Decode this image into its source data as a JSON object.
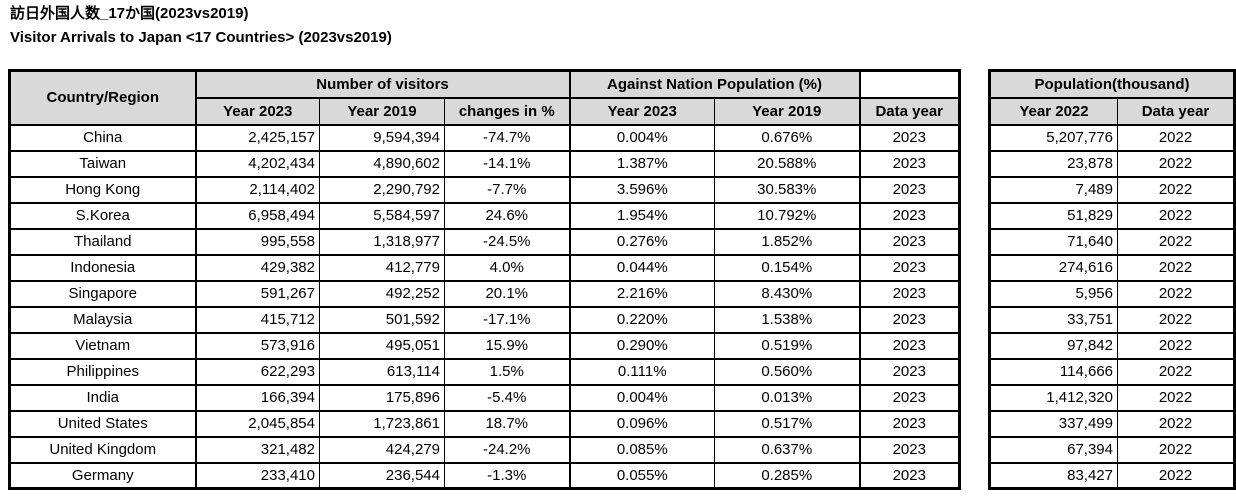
{
  "titles": {
    "japanese": "訪日外国人数_17か国(2023vs2019)",
    "english": "Visitor Arrivals to Japan <17 Countries> (2023vs2019)"
  },
  "colors": {
    "header_fill": "#d9d9d9",
    "border": "#000000",
    "background": "#ffffff",
    "text": "#000000"
  },
  "main_table": {
    "group_headers": {
      "country": "Country/Region",
      "visitors": "Number of visitors",
      "against_population": "Against Nation Population (%)",
      "spacer": ""
    },
    "sub_headers": {
      "visitors_2023": "Year 2023",
      "visitors_2019": "Year 2019",
      "change": "changes in %",
      "pct_2023": "Year 2023",
      "pct_2019": "Year 2019",
      "data_year": "Data year"
    }
  },
  "population_table": {
    "group_header": "Population(thousand)",
    "sub_headers": {
      "year_2022": "Year 2022",
      "data_year": "Data year"
    }
  },
  "chart_data": {
    "type": "table",
    "title": "Visitor Arrivals to Japan <17 Countries> (2023vs2019)",
    "title_japanese": "訪日外国人数_17か国(2023vs2019)",
    "columns": [
      "Country/Region",
      "Number of visitors Year 2023",
      "Number of visitors Year 2019",
      "changes in %",
      "Against Nation Population (%) Year 2023",
      "Against Nation Population (%) Year 2019",
      "Data year",
      "Population(thousand) Year 2022",
      "Population Data year"
    ],
    "rows": [
      {
        "country": "China",
        "visitors_2023": "2,425,157",
        "visitors_2019": "9,594,394",
        "change": "-74.7%",
        "pct_2023": "0.004%",
        "pct_2019": "0.676%",
        "data_year": "2023",
        "population_2022": "5,207,776",
        "pop_data_year": "2022"
      },
      {
        "country": "Taiwan",
        "visitors_2023": "4,202,434",
        "visitors_2019": "4,890,602",
        "change": "-14.1%",
        "pct_2023": "1.387%",
        "pct_2019": "20.588%",
        "data_year": "2023",
        "population_2022": "23,878",
        "pop_data_year": "2022"
      },
      {
        "country": "Hong Kong",
        "visitors_2023": "2,114,402",
        "visitors_2019": "2,290,792",
        "change": "-7.7%",
        "pct_2023": "3.596%",
        "pct_2019": "30.583%",
        "data_year": "2023",
        "population_2022": "7,489",
        "pop_data_year": "2022"
      },
      {
        "country": "S.Korea",
        "visitors_2023": "6,958,494",
        "visitors_2019": "5,584,597",
        "change": "24.6%",
        "pct_2023": "1.954%",
        "pct_2019": "10.792%",
        "data_year": "2023",
        "population_2022": "51,829",
        "pop_data_year": "2022"
      },
      {
        "country": "Thailand",
        "visitors_2023": "995,558",
        "visitors_2019": "1,318,977",
        "change": "-24.5%",
        "pct_2023": "0.276%",
        "pct_2019": "1.852%",
        "data_year": "2023",
        "population_2022": "71,640",
        "pop_data_year": "2022"
      },
      {
        "country": "Indonesia",
        "visitors_2023": "429,382",
        "visitors_2019": "412,779",
        "change": "4.0%",
        "pct_2023": "0.044%",
        "pct_2019": "0.154%",
        "data_year": "2023",
        "population_2022": "274,616",
        "pop_data_year": "2022"
      },
      {
        "country": "Singapore",
        "visitors_2023": "591,267",
        "visitors_2019": "492,252",
        "change": "20.1%",
        "pct_2023": "2.216%",
        "pct_2019": "8.430%",
        "data_year": "2023",
        "population_2022": "5,956",
        "pop_data_year": "2022"
      },
      {
        "country": "Malaysia",
        "visitors_2023": "415,712",
        "visitors_2019": "501,592",
        "change": "-17.1%",
        "pct_2023": "0.220%",
        "pct_2019": "1.538%",
        "data_year": "2023",
        "population_2022": "33,751",
        "pop_data_year": "2022"
      },
      {
        "country": "Vietnam",
        "visitors_2023": "573,916",
        "visitors_2019": "495,051",
        "change": "15.9%",
        "pct_2023": "0.290%",
        "pct_2019": "0.519%",
        "data_year": "2023",
        "population_2022": "97,842",
        "pop_data_year": "2022"
      },
      {
        "country": "Philippines",
        "visitors_2023": "622,293",
        "visitors_2019": "613,114",
        "change": "1.5%",
        "pct_2023": "0.111%",
        "pct_2019": "0.560%",
        "data_year": "2023",
        "population_2022": "114,666",
        "pop_data_year": "2022"
      },
      {
        "country": "India",
        "visitors_2023": "166,394",
        "visitors_2019": "175,896",
        "change": "-5.4%",
        "pct_2023": "0.004%",
        "pct_2019": "0.013%",
        "data_year": "2023",
        "population_2022": "1,412,320",
        "pop_data_year": "2022"
      },
      {
        "country": "United States",
        "visitors_2023": "2,045,854",
        "visitors_2019": "1,723,861",
        "change": "18.7%",
        "pct_2023": "0.096%",
        "pct_2019": "0.517%",
        "data_year": "2023",
        "population_2022": "337,499",
        "pop_data_year": "2022"
      },
      {
        "country": "United Kingdom",
        "visitors_2023": "321,482",
        "visitors_2019": "424,279",
        "change": "-24.2%",
        "pct_2023": "0.085%",
        "pct_2019": "0.637%",
        "data_year": "2023",
        "population_2022": "67,394",
        "pop_data_year": "2022"
      },
      {
        "country": "Germany",
        "visitors_2023": "233,410",
        "visitors_2019": "236,544",
        "change": "-1.3%",
        "pct_2023": "0.055%",
        "pct_2019": "0.285%",
        "data_year": "2023",
        "population_2022": "83,427",
        "pop_data_year": "2022"
      }
    ]
  }
}
